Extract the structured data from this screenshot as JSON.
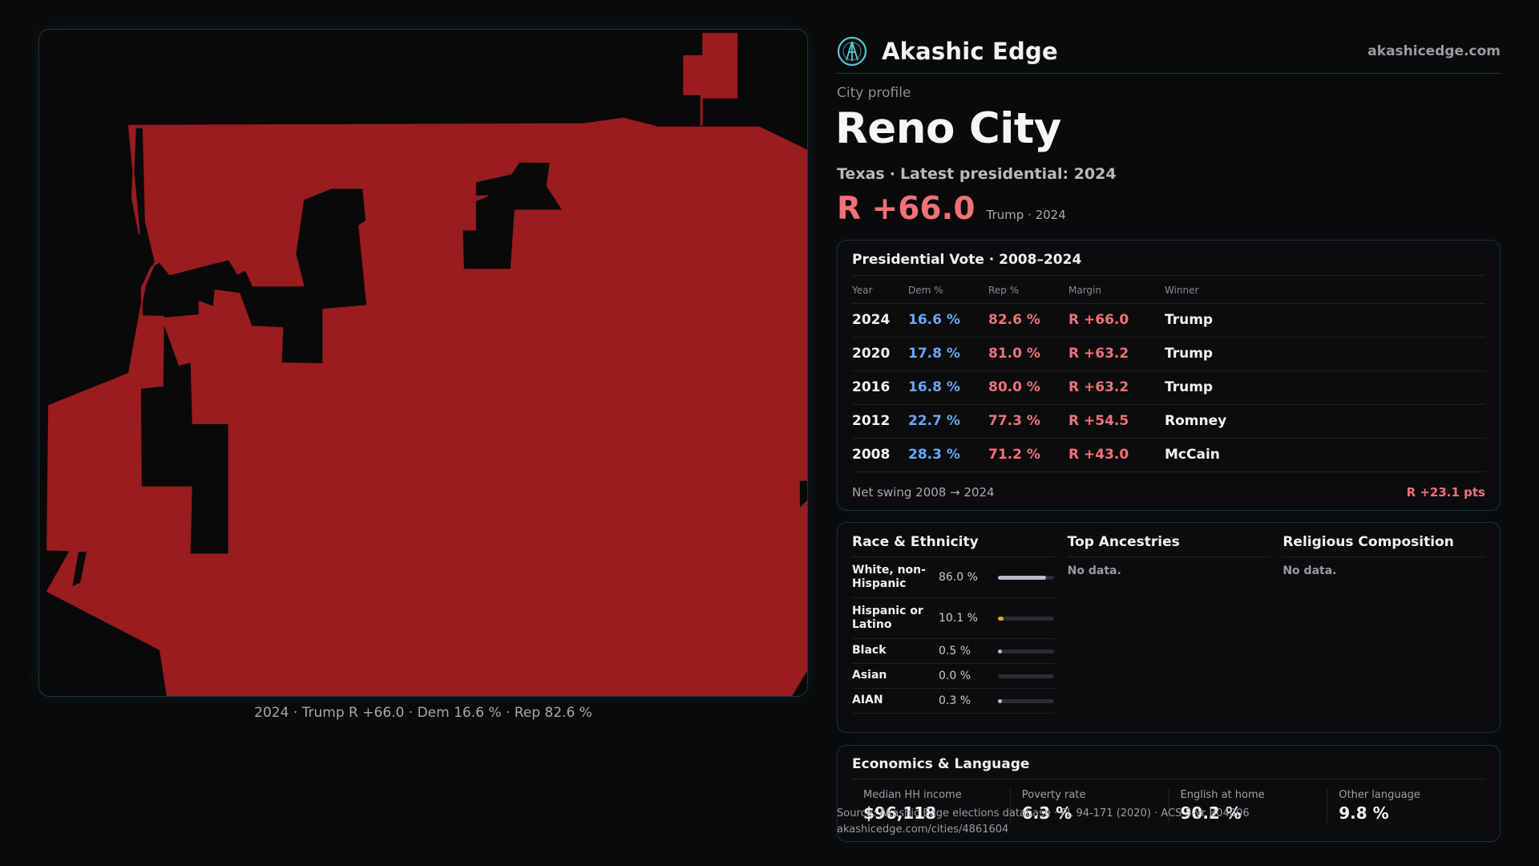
{
  "header": {
    "brand_name": "Akashic Edge",
    "site": "akashicedge.com"
  },
  "profile": {
    "eyebrow": "City profile",
    "city": "Reno City",
    "state": "Texas",
    "latest": "Latest presidential: 2024",
    "margin": "R +66.0",
    "margin_note": "Trump · 2024"
  },
  "map": {
    "caption": "2024 · Trump R +66.0 · Dem 16.6 % · Rep 82.6 %",
    "fill_color": "#991c1f"
  },
  "vote": {
    "title": "Presidential Vote · 2008–2024",
    "columns": [
      "Year",
      "Dem %",
      "Rep %",
      "Margin",
      "Winner"
    ],
    "rows": [
      {
        "year": "2024",
        "dem": "16.6 %",
        "rep": "82.6 %",
        "margin": "R +66.0",
        "winner": "Trump"
      },
      {
        "year": "2020",
        "dem": "17.8 %",
        "rep": "81.0 %",
        "margin": "R +63.2",
        "winner": "Trump"
      },
      {
        "year": "2016",
        "dem": "16.8 %",
        "rep": "80.0 %",
        "margin": "R +63.2",
        "winner": "Trump"
      },
      {
        "year": "2012",
        "dem": "22.7 %",
        "rep": "77.3 %",
        "margin": "R +54.5",
        "winner": "Romney"
      },
      {
        "year": "2008",
        "dem": "28.3 %",
        "rep": "71.2 %",
        "margin": "R +43.0",
        "winner": "McCain"
      }
    ],
    "swing_label": "Net swing 2008 → 2024",
    "swing_value": "R +23.1 pts"
  },
  "race": {
    "title": "Race & Ethnicity",
    "rows": [
      {
        "label": "White, non-Hispanic",
        "pct": "86.0 %",
        "value": 0.86,
        "color": "#b9bcc4"
      },
      {
        "label": "Hispanic or Latino",
        "pct": "10.1 %",
        "value": 0.101,
        "color": "#e0a526"
      },
      {
        "label": "Black",
        "pct": "0.5 %",
        "value": 0.005,
        "color": "#b9bcc4"
      },
      {
        "label": "Asian",
        "pct": "0.0 %",
        "value": 0.0,
        "color": "#b9bcc4"
      },
      {
        "label": "AIAN",
        "pct": "0.3 %",
        "value": 0.003,
        "color": "#b9bcc4"
      }
    ]
  },
  "ancestries": {
    "title": "Top Ancestries",
    "empty": "No data."
  },
  "religion": {
    "title": "Religious Composition",
    "empty": "No data."
  },
  "econ": {
    "title": "Economics & Language",
    "items": [
      {
        "label": "Median HH income",
        "value": "$96,118"
      },
      {
        "label": "Poverty rate",
        "value": "6.3 %"
      },
      {
        "label": "English at home",
        "value": "90.2 %"
      },
      {
        "label": "Other language",
        "value": "9.8 %"
      }
    ]
  },
  "source": {
    "line1": "Source: Akashic Edge elections database · PL 94-171 (2020) · ACS 5-yr B04006",
    "line2": "akashicedge.com/cities/4861604"
  }
}
